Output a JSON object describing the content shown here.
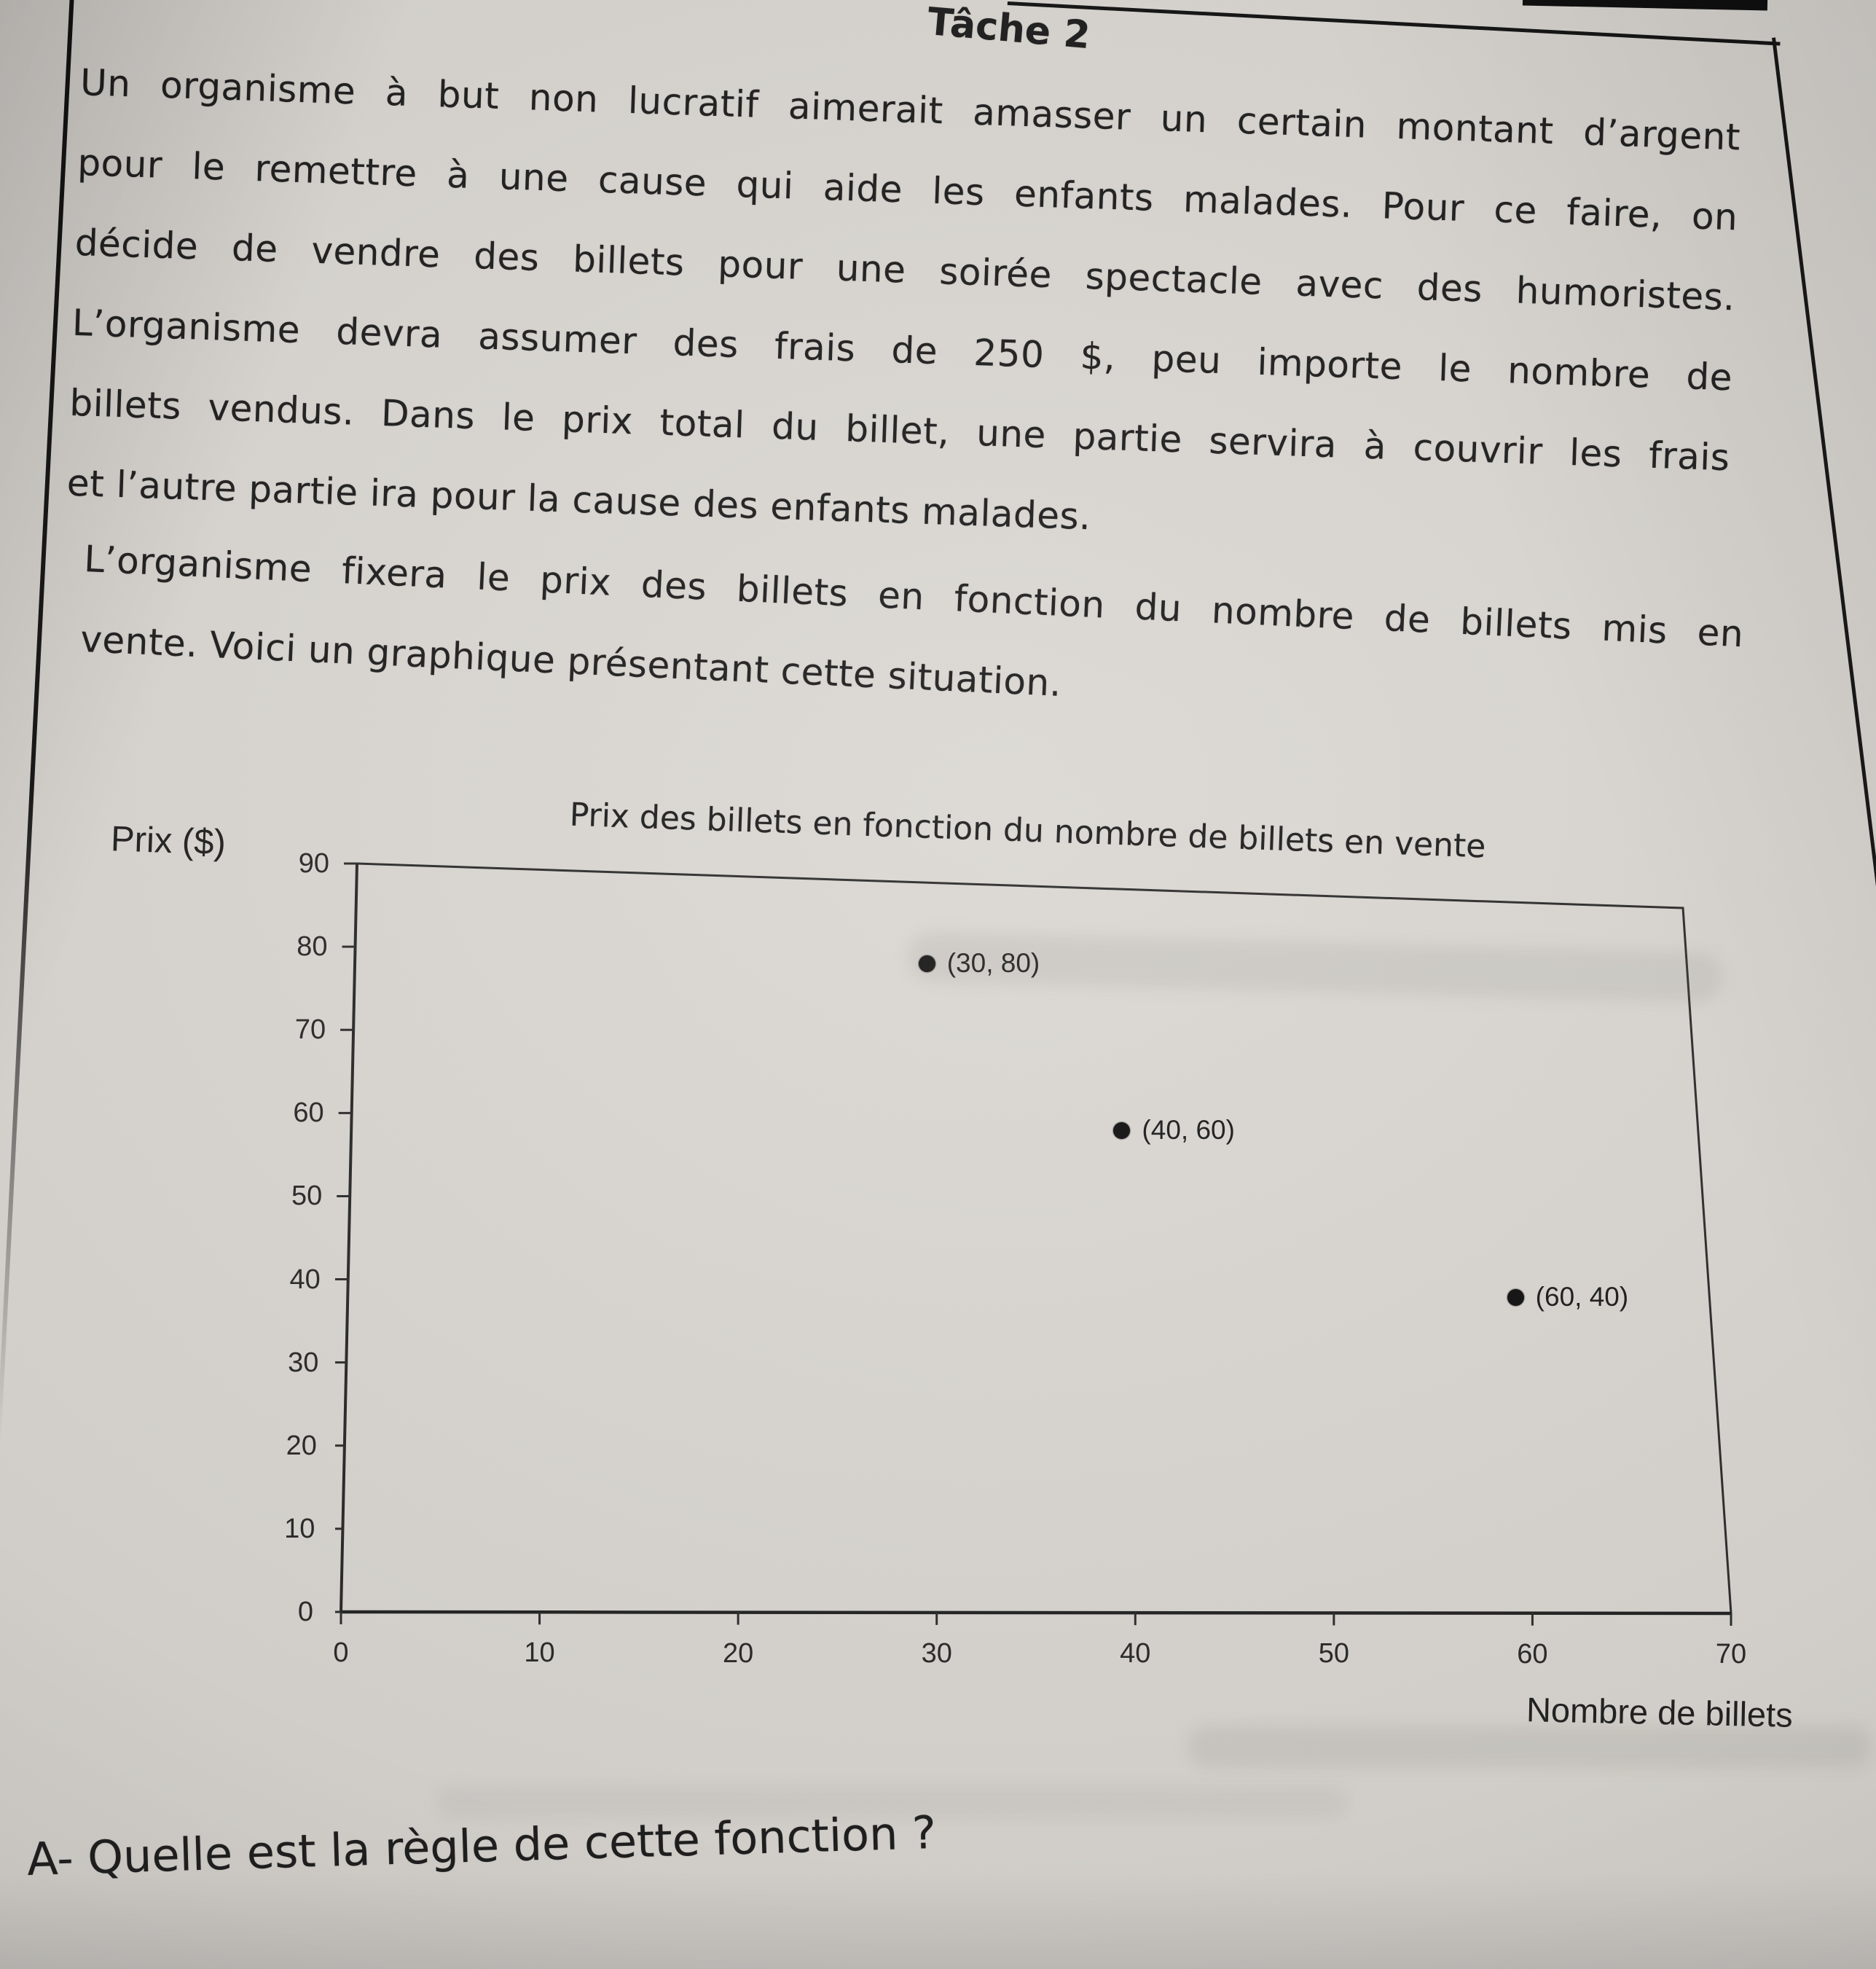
{
  "worksheet": {
    "title": "Tâche 2",
    "paragraph1": [
      "Un organisme à but non lucratif aimerait amasser un certain montant d’argent",
      "pour le remettre à une cause qui aide les enfants malades. Pour ce faire, on",
      "décide de vendre des billets pour une soirée spectacle avec des humoristes.",
      "L’organisme devra assumer des frais de 250 $, peu importe le nombre de",
      "billets vendus. Dans le prix total du billet, une partie servira à couvrir les frais",
      "et l’autre partie ira pour la cause des enfants malades."
    ],
    "paragraph2": [
      "L’organisme fixera le prix des billets en fonction du nombre de billets mis en",
      "vente. Voici un graphique présentant cette situation.",
      "A- Quelle est la règle de cette fonction ?"
    ]
  },
  "chart_data": {
    "type": "scatter",
    "title": "Prix des billets en fonction du nombre de billets en vente",
    "xlabel": "Nombre de billets",
    "ylabel": "Prix ($)",
    "xlim": [
      0,
      70
    ],
    "ylim": [
      0,
      90
    ],
    "x_ticks": [
      0,
      10,
      20,
      30,
      40,
      50,
      60,
      70
    ],
    "y_ticks": [
      0,
      10,
      20,
      30,
      40,
      50,
      60,
      70,
      80,
      90
    ],
    "grid": false,
    "legend_position": "none",
    "ink_color": "#2e2e2e",
    "points": [
      {
        "x": 30,
        "y": 80,
        "label": "(30, 80)"
      },
      {
        "x": 40,
        "y": 60,
        "label": "(40, 60)"
      },
      {
        "x": 60,
        "y": 40,
        "label": "(60, 40)"
      }
    ]
  }
}
